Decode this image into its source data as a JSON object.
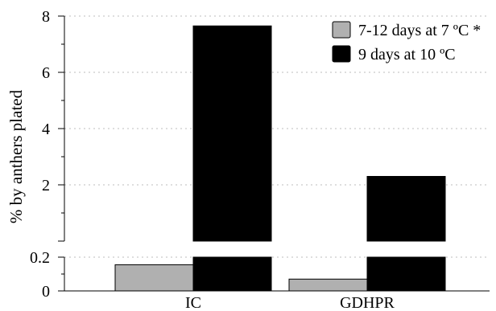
{
  "chart_data": {
    "type": "bar",
    "ylabel": "% by anthers plated",
    "categories": [
      "IC",
      "GDHPR"
    ],
    "series": [
      {
        "name": "7-12 days at 7 ºC *",
        "color": "#b0b0b0",
        "values": [
          0.155,
          0.07
        ]
      },
      {
        "name": "9 days at 10 ºC",
        "color": "#000000",
        "values": [
          7.65,
          2.3
        ]
      }
    ],
    "axis_break": {
      "lower_range": [
        0,
        0.2
      ],
      "upper_range": [
        0,
        8
      ]
    },
    "lower_ticks": [
      0,
      0.2
    ],
    "upper_ticks": [
      2,
      4,
      6,
      8
    ],
    "lower_tick_labels": [
      "0",
      "0.2"
    ],
    "upper_tick_labels": [
      "2",
      "4",
      "6",
      "8"
    ],
    "grid": "dotted horizontal",
    "legend_position": "top-right"
  }
}
